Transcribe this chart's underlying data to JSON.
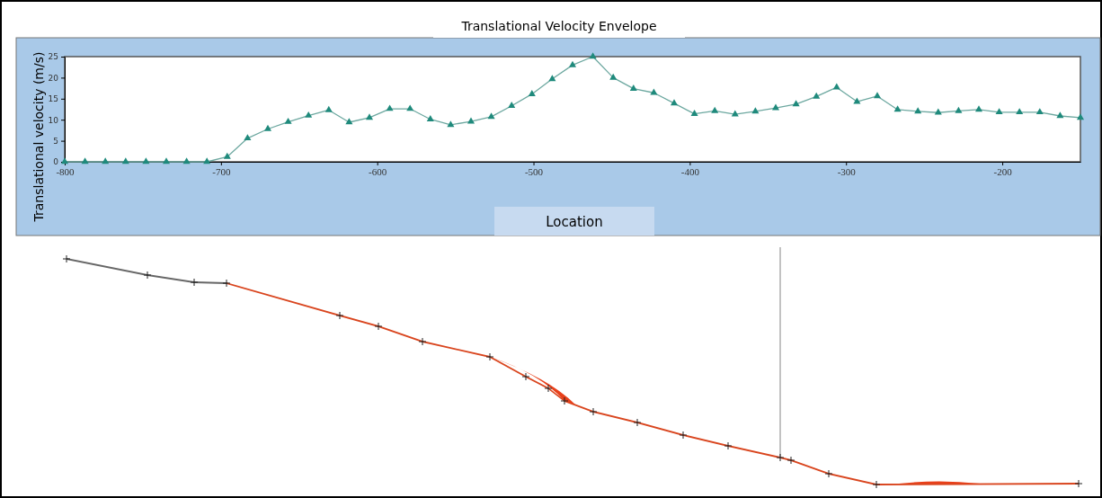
{
  "chart_data": {
    "type": "line",
    "title": "Translational Velocity Envelope",
    "xlabel": "Location",
    "ylabel": "Translational velocity (m/s)",
    "x": [
      -800,
      -787,
      -774,
      -761,
      -748,
      -735,
      -722,
      -709,
      -696,
      -683,
      -670,
      -657,
      -644,
      -631,
      -618,
      -605,
      -592,
      -579,
      -566,
      -553,
      -540,
      -527,
      -514,
      -501,
      -488,
      -475,
      -462,
      -449,
      -436,
      -423,
      -410,
      -397,
      -384,
      -371,
      -358,
      -345,
      -332,
      -319,
      -306,
      -293,
      -280,
      -267,
      -254,
      -241,
      -228,
      -215,
      -202,
      -189,
      -176,
      -163,
      -150
    ],
    "series": [
      {
        "color": "#1f8a7c",
        "values": [
          0,
          0,
          0,
          0,
          0,
          0,
          0,
          0,
          1.2,
          5.6,
          7.8,
          9.5,
          11.0,
          12.3,
          9.4,
          10.5,
          12.6,
          12.6,
          10.1,
          8.8,
          9.6,
          10.7,
          13.3,
          16.1,
          19.7,
          23.0,
          25,
          20.0,
          17.4,
          16.4,
          13.9,
          11.4,
          12.1,
          11.3,
          12.0,
          12.8,
          13.7,
          15.5,
          17.7,
          14.3,
          15.6,
          12.4,
          12.0,
          11.7,
          12.1,
          12.4,
          11.8,
          11.8,
          11.8,
          10.9,
          10.5
        ]
      }
    ],
    "xlim": [
      -800,
      -150
    ],
    "xticks": [
      -800,
      -700,
      -600,
      -500,
      -400,
      -300,
      -200
    ],
    "ylim": [
      0,
      25
    ],
    "yticks": [
      0,
      5,
      10,
      15,
      20,
      25
    ],
    "marker": "triangle",
    "line_style": "solid",
    "grid": false
  }
}
